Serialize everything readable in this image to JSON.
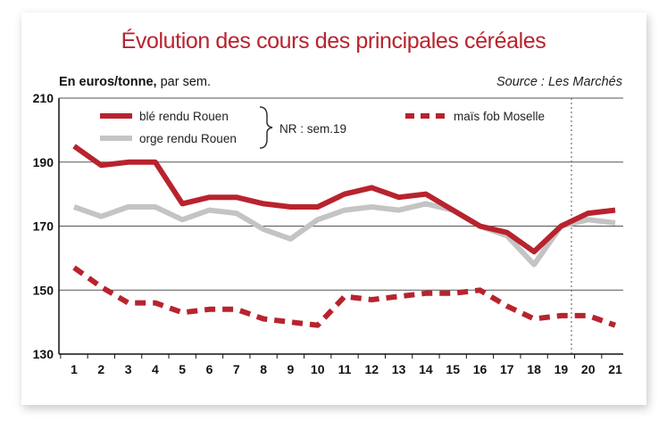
{
  "chart_data": {
    "type": "line",
    "title": "Évolution des cours des principales céréales",
    "unit_label_bold": "En euros/tonne,",
    "unit_label_rest": " par sem.",
    "source": "Source : Les Marchés",
    "annotation": "NR : sem.19",
    "x": [
      1,
      2,
      3,
      4,
      5,
      6,
      7,
      8,
      9,
      10,
      11,
      12,
      13,
      14,
      15,
      16,
      17,
      18,
      19,
      20,
      21
    ],
    "ylim": [
      130,
      210
    ],
    "yticks": [
      130,
      150,
      170,
      190,
      210
    ],
    "grid": "horizontal",
    "legend_position": "top",
    "series": [
      {
        "name": "blé rendu Rouen",
        "color": "#b8232e",
        "style": "solid",
        "values": [
          195,
          189,
          190,
          190,
          177,
          179,
          179,
          177,
          176,
          176,
          180,
          182,
          179,
          180,
          175,
          170,
          168,
          162,
          170,
          174,
          175
        ]
      },
      {
        "name": "orge rendu Rouen",
        "color": "#c4c4c4",
        "style": "solid",
        "values": [
          176,
          173,
          176,
          176,
          172,
          175,
          174,
          169,
          166,
          172,
          175,
          176,
          175,
          177,
          175,
          170,
          167,
          158,
          170,
          172,
          171
        ]
      },
      {
        "name": "maïs fob Moselle",
        "color": "#b8232e",
        "style": "dashed",
        "values": [
          157,
          151,
          146,
          146,
          143,
          144,
          144,
          141,
          140,
          139,
          148,
          147,
          148,
          149,
          149,
          150,
          145,
          141,
          142,
          142,
          139
        ]
      }
    ]
  }
}
